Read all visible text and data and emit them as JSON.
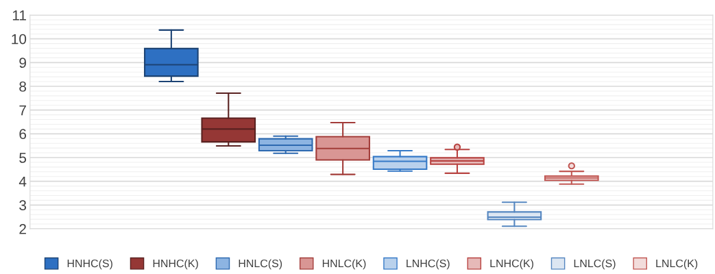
{
  "chart_data": {
    "type": "box",
    "categories": [
      null
    ],
    "ylim": [
      2,
      11
    ],
    "yticks": [
      2,
      3,
      4,
      5,
      6,
      7,
      8,
      9,
      10,
      11
    ],
    "grid": "y",
    "legend": "bottom",
    "tick_labels": "y",
    "series": [
      {
        "name": "HNHC(S)",
        "color": "#2e70c2",
        "boxes": [
          {
            "low": 8.2,
            "q1": 8.43,
            "median": 8.91,
            "q3": 9.59,
            "high": 10.37
          }
        ]
      },
      {
        "name": "HNHC(K)",
        "color": "#953735",
        "boxes": [
          {
            "low": 5.49,
            "q1": 5.66,
            "median": 6.2,
            "q3": 6.66,
            "high": 7.71
          }
        ]
      },
      {
        "name": "HNLC(S)",
        "color": "#8db4e2",
        "boxes": [
          {
            "low": 5.18,
            "q1": 5.29,
            "median": 5.52,
            "q3": 5.79,
            "high": 5.9
          }
        ]
      },
      {
        "name": "HNLC(K)",
        "color": "#d99694",
        "boxes": [
          {
            "low": 4.29,
            "q1": 4.9,
            "median": 5.38,
            "q3": 5.88,
            "high": 6.47
          }
        ]
      },
      {
        "name": "LNHC(S)",
        "color": "#b9d1ec",
        "boxes": [
          {
            "low": 4.43,
            "q1": 4.51,
            "median": 4.84,
            "q3": 5.04,
            "high": 5.29
          }
        ]
      },
      {
        "name": "LNHC(K)",
        "color": "#e6b9b8",
        "boxes": [
          {
            "low": 4.34,
            "q1": 4.72,
            "median": 4.86,
            "q3": 4.99,
            "high": 5.34,
            "outliers": [
              5.44
            ]
          }
        ]
      },
      {
        "name": "LNLC(S)",
        "color": "#dce6f2",
        "boxes": [
          {
            "low": 2.11,
            "q1": 2.39,
            "median": 2.49,
            "q3": 2.71,
            "high": 3.12
          }
        ]
      },
      {
        "name": "LNLC(K)",
        "color": "#f2dcdb",
        "boxes": [
          {
            "low": 3.88,
            "q1": 4.04,
            "median": 4.14,
            "q3": 4.22,
            "high": 4.42,
            "outliers": [
              4.65
            ]
          }
        ]
      }
    ]
  }
}
